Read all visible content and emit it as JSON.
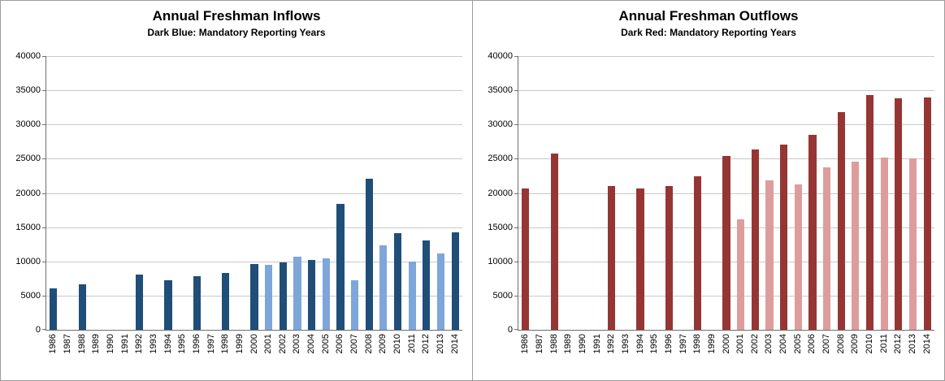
{
  "chart_data": [
    {
      "type": "bar",
      "title": "Annual Freshman Inflows",
      "subtitle": "Dark Blue: Mandatory Reporting Years",
      "xlabel": "",
      "ylabel": "",
      "ylim": [
        0,
        40000
      ],
      "ytick_step": 5000,
      "grid": true,
      "legend": "none",
      "categories": [
        "1986",
        "1987",
        "1988",
        "1989",
        "1990",
        "1991",
        "1992",
        "1993",
        "1994",
        "1995",
        "1996",
        "1997",
        "1998",
        "1999",
        "2000",
        "2001",
        "2002",
        "2003",
        "2004",
        "2005",
        "2006",
        "2007",
        "2008",
        "2009",
        "2010",
        "2011",
        "2012",
        "2013",
        "2014"
      ],
      "values": [
        6000,
        0,
        6600,
        0,
        0,
        0,
        8100,
        0,
        7300,
        0,
        7800,
        0,
        8300,
        0,
        9600,
        9500,
        9900,
        10700,
        10200,
        10400,
        18400,
        7300,
        22100,
        12400,
        14100,
        10000,
        13100,
        11100,
        14300
      ],
      "bar_styles": [
        "dark",
        null,
        "dark",
        null,
        null,
        null,
        "dark",
        null,
        "dark",
        null,
        "dark",
        null,
        "dark",
        null,
        "dark",
        "light",
        "dark",
        "light",
        "dark",
        "light",
        "dark",
        "light",
        "dark",
        "light",
        "dark",
        "light",
        "dark",
        "light",
        "dark"
      ],
      "colors": {
        "dark": "#1F4E79",
        "light": "#7EA6D9"
      }
    },
    {
      "type": "bar",
      "title": "Annual Freshman Outflows",
      "subtitle": "Dark Red: Mandatory Reporting Years",
      "xlabel": "",
      "ylabel": "",
      "ylim": [
        0,
        40000
      ],
      "ytick_step": 5000,
      "grid": true,
      "legend": "none",
      "categories": [
        "1986",
        "1987",
        "1988",
        "1989",
        "1990",
        "1991",
        "1992",
        "1993",
        "1994",
        "1995",
        "1996",
        "1997",
        "1998",
        "1999",
        "2000",
        "2001",
        "2002",
        "2003",
        "2004",
        "2005",
        "2006",
        "2007",
        "2008",
        "2009",
        "2010",
        "2011",
        "2012",
        "2013",
        "2014"
      ],
      "values": [
        20700,
        0,
        25800,
        0,
        0,
        0,
        21000,
        0,
        20700,
        0,
        21000,
        0,
        22400,
        0,
        25400,
        16100,
        26400,
        21800,
        27100,
        21200,
        28500,
        23800,
        31800,
        24600,
        34300,
        25200,
        33800,
        25000,
        33900
      ],
      "bar_styles": [
        "dark",
        null,
        "dark",
        null,
        null,
        null,
        "dark",
        null,
        "dark",
        null,
        "dark",
        null,
        "dark",
        null,
        "dark",
        "light",
        "dark",
        "light",
        "dark",
        "light",
        "dark",
        "light",
        "dark",
        "light",
        "dark",
        "light",
        "dark",
        "light",
        "dark"
      ],
      "colors": {
        "dark": "#963634",
        "light": "#DD9D9C"
      }
    }
  ]
}
